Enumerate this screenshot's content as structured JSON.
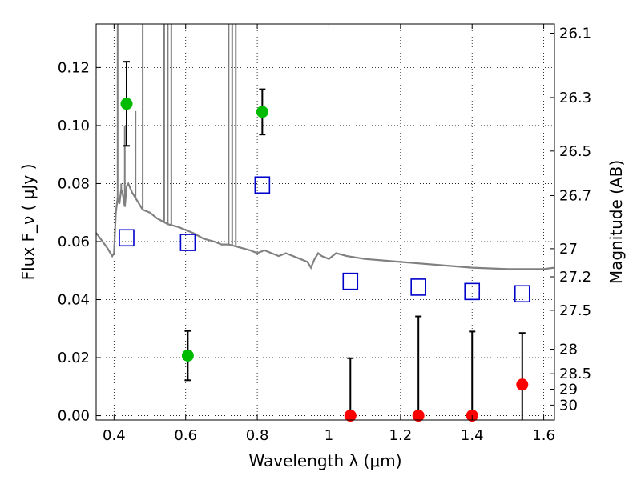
{
  "chart_data": {
    "type": "scatter",
    "xlabel": "Wavelength  λ (μm)",
    "ylabel": "Flux  F_ν  ( μJy )",
    "y2label": "Magnitude (AB)",
    "xlim": [
      0.35,
      1.63
    ],
    "ylim": [
      -0.0015,
      0.135
    ],
    "grid": true,
    "x_ticks": [
      0.4,
      0.6,
      0.8,
      1.0,
      1.2,
      1.4,
      1.6
    ],
    "x_tick_labels": [
      "0.4",
      "0.6",
      "0.8",
      "1",
      "1.2",
      "1.4",
      "1.6"
    ],
    "y_ticks": [
      0.0,
      0.02,
      0.04,
      0.06,
      0.08,
      0.1,
      0.12
    ],
    "y_tick_labels": [
      "0.00",
      "0.02",
      "0.04",
      "0.06",
      "0.08",
      "0.10",
      "0.12"
    ],
    "mag_ticks": [
      26.1,
      26.3,
      26.5,
      26.7,
      27,
      27.2,
      27.5,
      28,
      28.5,
      29,
      30
    ],
    "mag_tick_labels": [
      "26.1",
      "26.3",
      "26.5",
      "26.7",
      "27",
      "27.2",
      "27.5",
      "28",
      "28.5",
      "29",
      "30"
    ],
    "colors": {
      "sed": "#808080",
      "detection": "#00bb00",
      "upper_limit": "#ff0000",
      "model_box": "#0000cc",
      "errorbar": "#000000"
    },
    "sed_model": {
      "x": [
        0.35,
        0.38,
        0.395,
        0.4,
        0.405,
        0.41,
        0.415,
        0.42,
        0.425,
        0.43,
        0.435,
        0.44,
        0.45,
        0.46,
        0.47,
        0.48,
        0.5,
        0.52,
        0.55,
        0.58,
        0.6,
        0.62,
        0.65,
        0.68,
        0.7,
        0.72,
        0.75,
        0.78,
        0.8,
        0.82,
        0.84,
        0.86,
        0.88,
        0.9,
        0.92,
        0.94,
        0.95,
        0.96,
        0.97,
        0.98,
        1.0,
        1.02,
        1.05,
        1.1,
        1.2,
        1.3,
        1.4,
        1.5,
        1.55,
        1.6,
        1.63
      ],
      "y": [
        0.063,
        0.058,
        0.055,
        0.056,
        0.07,
        0.075,
        0.073,
        0.078,
        0.076,
        0.072,
        0.079,
        0.08,
        0.077,
        0.075,
        0.073,
        0.071,
        0.07,
        0.068,
        0.066,
        0.065,
        0.064,
        0.063,
        0.061,
        0.06,
        0.059,
        0.059,
        0.058,
        0.057,
        0.056,
        0.057,
        0.056,
        0.055,
        0.056,
        0.055,
        0.054,
        0.053,
        0.051,
        0.054,
        0.056,
        0.055,
        0.054,
        0.056,
        0.055,
        0.054,
        0.053,
        0.052,
        0.051,
        0.0505,
        0.0505,
        0.0505,
        0.051
      ]
    },
    "sed_spikes": [
      {
        "x": 0.41,
        "y": 0.135
      },
      {
        "x": 0.42,
        "y": 0.08
      },
      {
        "x": 0.43,
        "y": 0.1
      },
      {
        "x": 0.46,
        "y": 0.105
      },
      {
        "x": 0.48,
        "y": 0.135
      },
      {
        "x": 0.54,
        "y": 0.135
      },
      {
        "x": 0.55,
        "y": 0.135
      },
      {
        "x": 0.56,
        "y": 0.135
      },
      {
        "x": 0.72,
        "y": 0.135
      },
      {
        "x": 0.73,
        "y": 0.135
      },
      {
        "x": 0.74,
        "y": 0.135
      }
    ],
    "detections": [
      {
        "x": 0.435,
        "y": 0.1075,
        "err": 0.0145
      },
      {
        "x": 0.606,
        "y": 0.0207,
        "err": 0.0085
      },
      {
        "x": 0.814,
        "y": 0.1047,
        "err": 0.0078
      }
    ],
    "upper_limits": [
      {
        "x": 1.06,
        "y": 0.0,
        "err": 0.0198
      },
      {
        "x": 1.25,
        "y": 0.0,
        "err": 0.0342
      },
      {
        "x": 1.4,
        "y": 0.0,
        "err": 0.029
      },
      {
        "x": 1.54,
        "y": 0.0107,
        "err": 0.0178
      }
    ],
    "model_points": [
      {
        "x": 0.435,
        "y": 0.0613
      },
      {
        "x": 0.606,
        "y": 0.0597
      },
      {
        "x": 0.814,
        "y": 0.0795
      },
      {
        "x": 1.06,
        "y": 0.0463
      },
      {
        "x": 1.25,
        "y": 0.0443
      },
      {
        "x": 1.4,
        "y": 0.0428
      },
      {
        "x": 1.54,
        "y": 0.042
      }
    ]
  }
}
